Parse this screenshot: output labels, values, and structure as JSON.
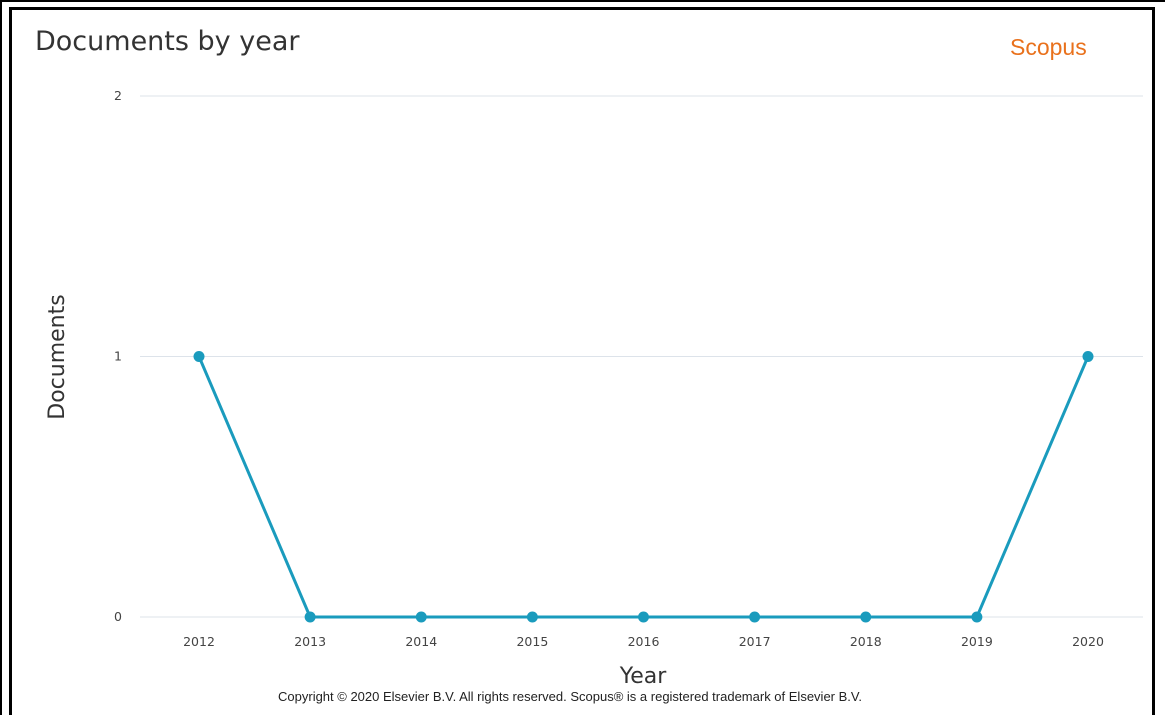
{
  "header": {
    "title": "Documents by year",
    "brand": "Scopus"
  },
  "footer": {
    "copyright": "Copyright © 2020 Elsevier B.V. All rights reserved. Scopus® is a registered trademark of Elsevier B.V."
  },
  "colors": {
    "line": "#1a9bbd",
    "brand": "#e9711c",
    "grid": "#dde3ea"
  },
  "chart_data": {
    "type": "line",
    "title": "Documents by year",
    "xlabel": "Year",
    "ylabel": "Documents",
    "categories": [
      "2012",
      "2013",
      "2014",
      "2015",
      "2016",
      "2017",
      "2018",
      "2019",
      "2020"
    ],
    "values": [
      1,
      0,
      0,
      0,
      0,
      0,
      0,
      0,
      1
    ],
    "ylim": [
      0,
      2
    ],
    "yticks": [
      0,
      1,
      2
    ],
    "grid": true,
    "legend": "none"
  }
}
